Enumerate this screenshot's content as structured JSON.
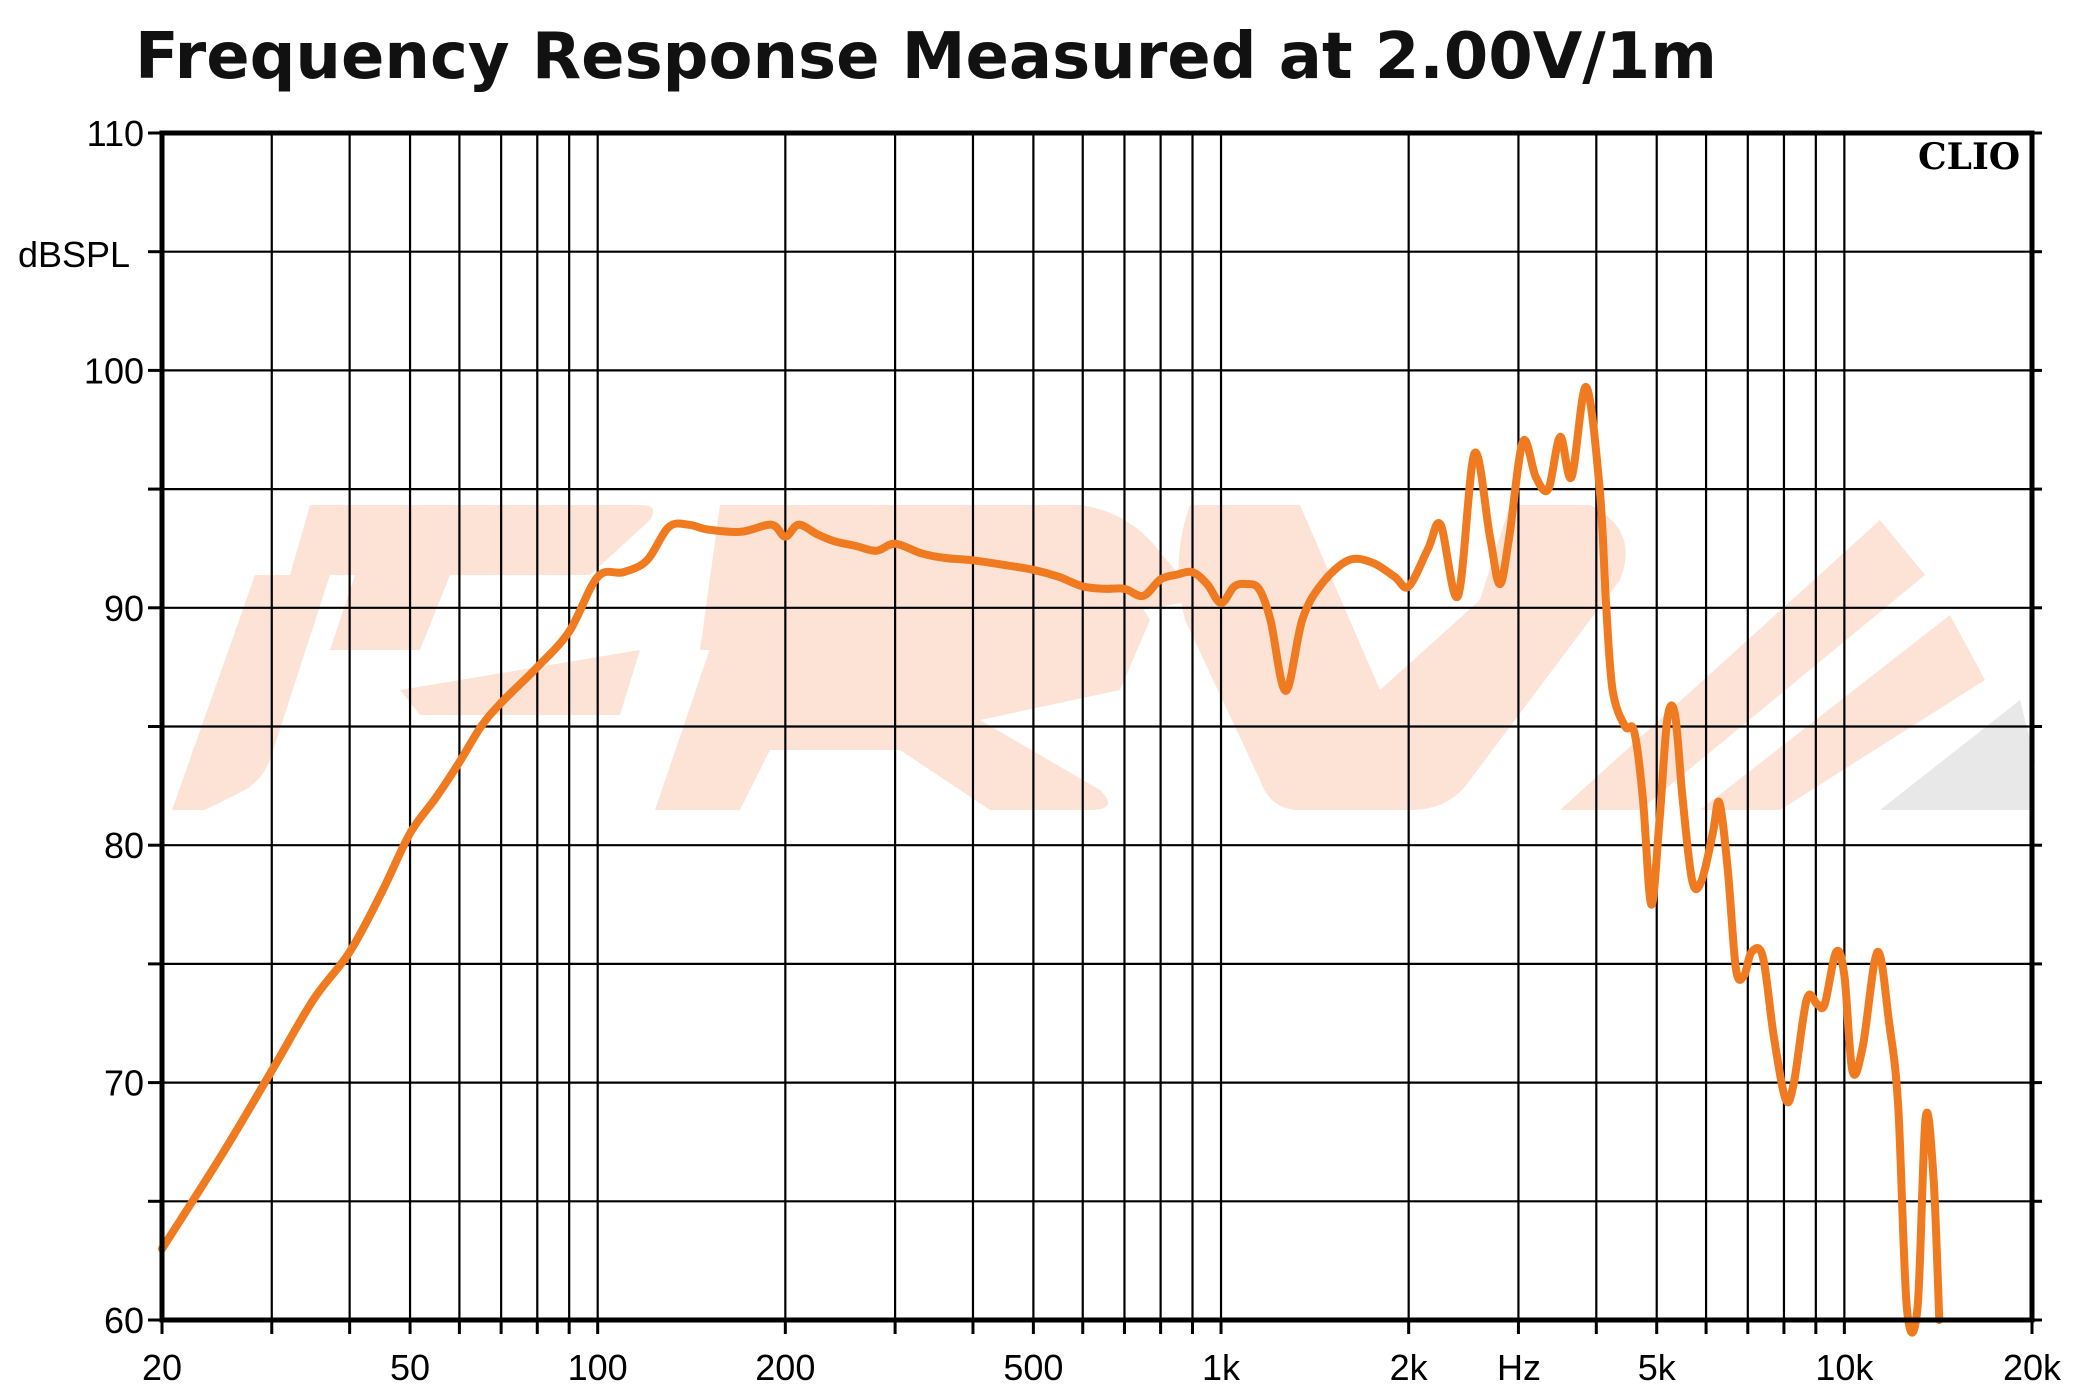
{
  "chart_data": {
    "type": "line",
    "title": "Frequency Response Measured at 2.00V/1m",
    "ylabel": "dBSPL",
    "xlabel": "Hz",
    "x_scale": "log",
    "xlim": [
      20,
      20000
    ],
    "ylim": [
      60,
      110
    ],
    "x_major_ticks": [
      20,
      50,
      100,
      200,
      500,
      1000,
      2000,
      5000,
      10000,
      20000
    ],
    "x_tick_labels": [
      "20",
      "50",
      "100",
      "200",
      "500",
      "1k",
      "2k",
      "5k",
      "10k",
      "20k"
    ],
    "x_minor_grid": [
      30,
      40,
      60,
      70,
      80,
      90,
      300,
      400,
      600,
      700,
      800,
      900,
      3000,
      4000,
      6000,
      7000,
      8000,
      9000
    ],
    "y_ticks": [
      60,
      70,
      80,
      90,
      100,
      110
    ],
    "y_tick_labels": [
      "60",
      "70",
      "80",
      "90",
      "100",
      "110"
    ],
    "y_minor_grid": [
      65,
      75,
      85,
      95,
      105
    ],
    "grid": true,
    "watermark": "CLIO",
    "series": [
      {
        "color": "#f07a20",
        "points": [
          [
            20,
            63
          ],
          [
            25,
            67
          ],
          [
            30,
            70.5
          ],
          [
            35,
            73.5
          ],
          [
            40,
            75.5
          ],
          [
            45,
            78
          ],
          [
            50,
            80.5
          ],
          [
            55,
            82
          ],
          [
            60,
            83.5
          ],
          [
            65,
            85
          ],
          [
            70,
            86
          ],
          [
            80,
            87.5
          ],
          [
            90,
            89
          ],
          [
            100,
            91.3
          ],
          [
            110,
            91.5
          ],
          [
            120,
            92
          ],
          [
            130,
            93.4
          ],
          [
            140,
            93.5
          ],
          [
            150,
            93.3
          ],
          [
            170,
            93.2
          ],
          [
            190,
            93.5
          ],
          [
            200,
            93
          ],
          [
            210,
            93.5
          ],
          [
            225,
            93.1
          ],
          [
            240,
            92.8
          ],
          [
            260,
            92.6
          ],
          [
            280,
            92.4
          ],
          [
            300,
            92.7
          ],
          [
            330,
            92.3
          ],
          [
            360,
            92.1
          ],
          [
            400,
            92
          ],
          [
            450,
            91.8
          ],
          [
            500,
            91.6
          ],
          [
            550,
            91.3
          ],
          [
            600,
            90.9
          ],
          [
            650,
            90.8
          ],
          [
            700,
            90.8
          ],
          [
            750,
            90.5
          ],
          [
            800,
            91.2
          ],
          [
            850,
            91.4
          ],
          [
            900,
            91.5
          ],
          [
            950,
            91
          ],
          [
            1000,
            90.2
          ],
          [
            1050,
            90.9
          ],
          [
            1100,
            91
          ],
          [
            1150,
            90.8
          ],
          [
            1200,
            89.5
          ],
          [
            1270,
            86.5
          ],
          [
            1350,
            89.5
          ],
          [
            1450,
            91
          ],
          [
            1600,
            92
          ],
          [
            1750,
            91.9
          ],
          [
            1900,
            91.3
          ],
          [
            2000,
            90.9
          ],
          [
            2150,
            92.5
          ],
          [
            2250,
            93.5
          ],
          [
            2400,
            90.5
          ],
          [
            2550,
            96.5
          ],
          [
            2700,
            93
          ],
          [
            2800,
            91
          ],
          [
            2900,
            93
          ],
          [
            3050,
            97
          ],
          [
            3200,
            95.5
          ],
          [
            3350,
            95
          ],
          [
            3500,
            97.2
          ],
          [
            3650,
            95.5
          ],
          [
            3850,
            99.3
          ],
          [
            4050,
            95
          ],
          [
            4150,
            90
          ],
          [
            4250,
            86.5
          ],
          [
            4450,
            85
          ],
          [
            4600,
            84.8
          ],
          [
            4750,
            82
          ],
          [
            4900,
            77.5
          ],
          [
            5050,
            81
          ],
          [
            5200,
            85.3
          ],
          [
            5350,
            85.5
          ],
          [
            5500,
            82
          ],
          [
            5700,
            78.5
          ],
          [
            5900,
            78.5
          ],
          [
            6150,
            80.5
          ],
          [
            6300,
            81.8
          ],
          [
            6500,
            79
          ],
          [
            6700,
            74.8
          ],
          [
            6900,
            74.5
          ],
          [
            7100,
            75.5
          ],
          [
            7400,
            75.3
          ],
          [
            7700,
            72
          ],
          [
            8050,
            69.3
          ],
          [
            8300,
            70
          ],
          [
            8700,
            73.5
          ],
          [
            9050,
            73.3
          ],
          [
            9300,
            73.3
          ],
          [
            9700,
            75.5
          ],
          [
            10000,
            74.5
          ],
          [
            10300,
            70.5
          ],
          [
            10700,
            71.5
          ],
          [
            11300,
            75.5
          ],
          [
            11800,
            72.5
          ],
          [
            12200,
            69
          ],
          [
            12600,
            60.5
          ],
          [
            13100,
            60.5
          ],
          [
            13500,
            68.5
          ],
          [
            13900,
            66
          ],
          [
            14200,
            60
          ]
        ]
      }
    ]
  }
}
